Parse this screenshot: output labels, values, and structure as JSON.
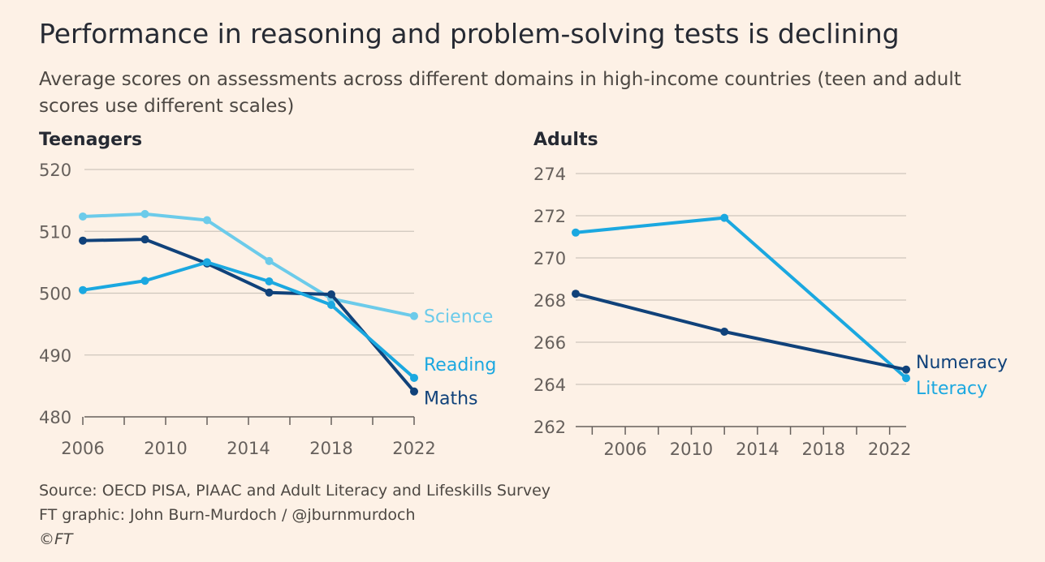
{
  "title": "Performance in reasoning and problem-solving tests is declining",
  "subtitle": "Average scores on assessments across different domains in high-income countries (teen and adult scores use different scales)",
  "colors": {
    "background": "#fdf1e6",
    "grid": "#cec6bd",
    "axis_text": "#66605c",
    "science": "#6ccbea",
    "reading": "#1ba8e0",
    "maths": "#10427a",
    "numeracy": "#10427a",
    "literacy": "#1ba8e0"
  },
  "chart_data": [
    {
      "type": "line",
      "title": "Teenagers",
      "xlabel": "",
      "ylabel": "",
      "xlim": [
        2006,
        2022
      ],
      "ylim": [
        480,
        520
      ],
      "xticks": [
        2006,
        2010,
        2014,
        2018,
        2022
      ],
      "yticks": [
        480,
        490,
        500,
        510,
        520
      ],
      "grid": true,
      "series": [
        {
          "name": "Science",
          "label": "Science",
          "x": [
            2006,
            2009,
            2012,
            2015,
            2018,
            2022
          ],
          "values": [
            512.4,
            512.8,
            511.8,
            505.2,
            499.1,
            496.3
          ]
        },
        {
          "name": "Maths",
          "label": "Maths",
          "x": [
            2006,
            2009,
            2012,
            2015,
            2018,
            2022
          ],
          "values": [
            508.5,
            508.7,
            504.8,
            500.1,
            499.8,
            484.1
          ]
        },
        {
          "name": "Reading",
          "label": "Reading",
          "x": [
            2006,
            2009,
            2012,
            2015,
            2018,
            2022
          ],
          "values": [
            500.5,
            502.0,
            505.0,
            501.9,
            498.1,
            486.3
          ]
        }
      ]
    },
    {
      "type": "line",
      "title": "Adults",
      "xlabel": "",
      "ylabel": "",
      "xlim": [
        2003,
        2023
      ],
      "ylim": [
        262,
        274
      ],
      "xticks": [
        2006,
        2010,
        2014,
        2018,
        2022
      ],
      "yticks": [
        262,
        264,
        266,
        268,
        270,
        272,
        274
      ],
      "grid": true,
      "series": [
        {
          "name": "Literacy",
          "label": "Literacy",
          "x": [
            2003,
            2012,
            2023
          ],
          "values": [
            271.2,
            271.9,
            264.3
          ]
        },
        {
          "name": "Numeracy",
          "label": "Numeracy",
          "x": [
            2003,
            2012,
            2023
          ],
          "values": [
            268.3,
            266.5,
            264.7
          ]
        }
      ]
    }
  ],
  "footer": {
    "source": "Source: OECD PISA, PIAAC and Adult Literacy and Lifeskills Survey",
    "graphic": "FT graphic: John Burn-Murdoch / @jburnmurdoch",
    "copyright": "©FT"
  }
}
